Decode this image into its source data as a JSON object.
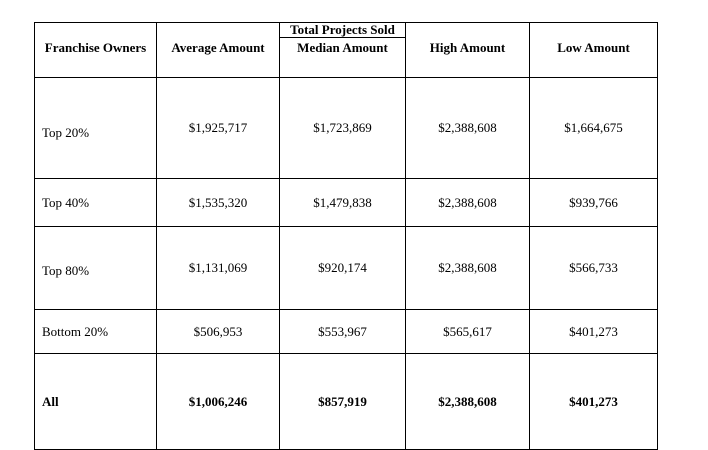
{
  "table": {
    "group_header": "Total Projects Sold",
    "columns": [
      "Franchise Owners",
      "Average Amount",
      "Median Amount",
      "High Amount",
      "Low Amount"
    ],
    "rows": [
      {
        "label": "Top 20%",
        "values": [
          "$1,925,717",
          "$1,723,869",
          "$2,388,608",
          "$1,664,675"
        ]
      },
      {
        "label": "Top 40%",
        "values": [
          "$1,535,320",
          "$1,479,838",
          "$2,388,608",
          "$939,766"
        ]
      },
      {
        "label": "Top 80%",
        "values": [
          "$1,131,069",
          "$920,174",
          "$2,388,608",
          "$566,733"
        ]
      },
      {
        "label": "Bottom 20%",
        "values": [
          "$506,953",
          "$553,967",
          "$565,617",
          "$401,273"
        ]
      },
      {
        "label": "All",
        "values": [
          "$1,006,246",
          "$857,919",
          "$2,388,608",
          "$401,273"
        ]
      }
    ]
  }
}
